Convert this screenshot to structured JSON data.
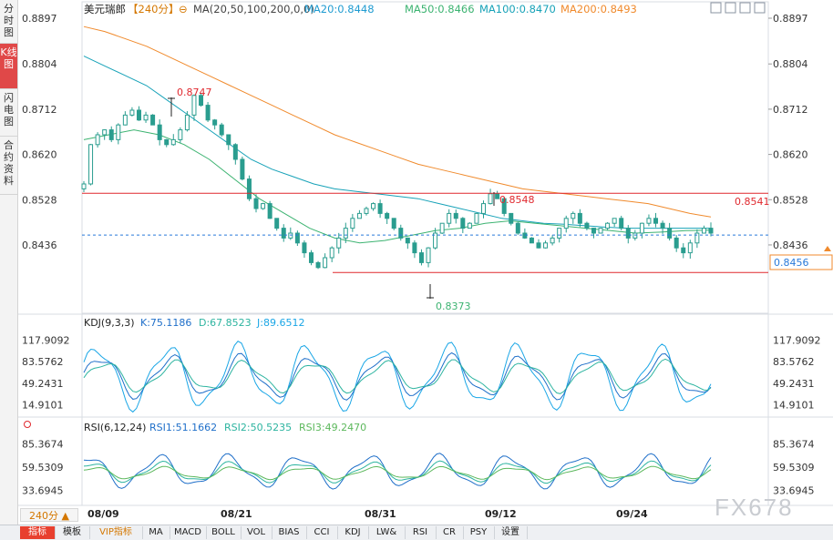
{
  "left_tabs": [
    {
      "label": "分时图",
      "active": false
    },
    {
      "label": "K线图",
      "active": true
    },
    {
      "label": "闪电图",
      "active": false
    },
    {
      "label": "合约资料",
      "active": false
    }
  ],
  "header": {
    "symbol": "美元瑞郎",
    "period": "【240分】",
    "ma_params": "MA(20,50,100,200,0,0)",
    "ma20": "MA20:0.8448",
    "ma50": "MA50:0.8466",
    "ma100": "MA100:0.8470",
    "ma200": "MA200:0.8493"
  },
  "colors": {
    "candle": "#2a9d8f",
    "ma20": "#1f9bd1",
    "ma50": "#3cb371",
    "ma100": "#17a2b8",
    "ma200": "#f08a2c",
    "resistance": "#e0282e",
    "support": "#e0282e",
    "current": "#2979d9",
    "high_label": "#e0282e",
    "low_label": "#3cb371",
    "k": "#1f6fc9",
    "d": "#2db4a0",
    "j": "#1aa6e6",
    "rsi1": "#1f6fc9",
    "rsi2": "#2db4a0",
    "rsi3": "#5cb85c"
  },
  "price_axis": {
    "ticks": [
      "0.8897",
      "0.8804",
      "0.8712",
      "0.8620",
      "0.8528",
      "0.8436"
    ],
    "current_price": "0.8456",
    "min": 0.836,
    "max": 0.8897
  },
  "annotations": {
    "high": "0.8747",
    "mid_high": "0.8548",
    "low": "0.8373",
    "resistance": "0.8541"
  },
  "kdj": {
    "title": "KDJ(9,3,3)",
    "k": "K:75.1186",
    "d": "D:67.8523",
    "j": "J:89.6512",
    "ticks": [
      "117.9092",
      "83.5762",
      "49.2431",
      "14.9101"
    ]
  },
  "rsi": {
    "title": "RSI(6,12,24)",
    "rsi1": "RSI1:51.1662",
    "rsi2": "RSI2:50.5235",
    "rsi3": "RSI3:49.2470",
    "ticks": [
      "85.3674",
      "59.5309",
      "33.6945"
    ]
  },
  "date_axis": [
    "08/09",
    "08/21",
    "08/31",
    "09/12",
    "09/24"
  ],
  "period_selector": "240分 ▲",
  "watermark": "FX678",
  "bottom_tabs": [
    "指标",
    "模板",
    "VIP指标",
    "MA",
    "MACD",
    "BOLL",
    "VOL",
    "BIAS",
    "CCI",
    "KDJ",
    "LW&",
    "RSI",
    "CR",
    "PSY",
    "设置"
  ],
  "chart_data": {
    "type": "candlestick",
    "x_categories": [
      "08/09",
      "08/21",
      "08/31",
      "09/12",
      "09/24"
    ],
    "y_range": [
      0.836,
      0.8897
    ],
    "key_points": [
      {
        "label": "0.8747",
        "kind": "swing-high",
        "near": "08/21"
      },
      {
        "label": "0.8548",
        "kind": "swing-high",
        "near": "09/12"
      },
      {
        "label": "0.8373",
        "kind": "swing-low",
        "near": "08/31"
      }
    ],
    "horizontal_lines": [
      {
        "value": 0.8541,
        "label": "0.8541"
      },
      {
        "value": 0.838,
        "label": ""
      }
    ],
    "close_path": [
      0.856,
      0.864,
      0.866,
      0.867,
      0.865,
      0.868,
      0.87,
      0.871,
      0.869,
      0.87,
      0.868,
      0.865,
      0.864,
      0.865,
      0.867,
      0.87,
      0.874,
      0.872,
      0.869,
      0.868,
      0.866,
      0.864,
      0.861,
      0.857,
      0.853,
      0.851,
      0.852,
      0.849,
      0.847,
      0.845,
      0.846,
      0.844,
      0.842,
      0.84,
      0.839,
      0.841,
      0.843,
      0.845,
      0.847,
      0.849,
      0.85,
      0.851,
      0.852,
      0.85,
      0.849,
      0.847,
      0.845,
      0.844,
      0.842,
      0.84,
      0.843,
      0.846,
      0.848,
      0.85,
      0.849,
      0.847,
      0.848,
      0.85,
      0.852,
      0.854,
      0.853,
      0.85,
      0.848,
      0.846,
      0.845,
      0.844,
      0.843,
      0.844,
      0.845,
      0.847,
      0.849,
      0.85,
      0.848,
      0.847,
      0.846,
      0.847,
      0.848,
      0.849,
      0.847,
      0.845,
      0.846,
      0.848,
      0.849,
      0.848,
      0.847,
      0.845,
      0.843,
      0.842,
      0.844,
      0.846,
      0.847,
      0.846
    ],
    "ma200_path": [
      0.888,
      0.887,
      0.8855,
      0.884,
      0.882,
      0.88,
      0.878,
      0.876,
      0.874,
      0.872,
      0.87,
      0.868,
      0.866,
      0.8645,
      0.863,
      0.8615,
      0.86,
      0.859,
      0.858,
      0.857,
      0.856,
      0.855,
      0.8545,
      0.854,
      0.8535,
      0.853,
      0.8525,
      0.852,
      0.851,
      0.85,
      0.8493
    ],
    "ma100_path": [
      0.882,
      0.88,
      0.878,
      0.876,
      0.873,
      0.87,
      0.867,
      0.864,
      0.861,
      0.859,
      0.8575,
      0.856,
      0.855,
      0.8545,
      0.854,
      0.8535,
      0.853,
      0.852,
      0.851,
      0.85,
      0.849,
      0.8485,
      0.848,
      0.8478,
      0.8475,
      0.8472,
      0.847,
      0.847,
      0.847,
      0.847,
      0.847
    ],
    "ma50_path": [
      0.865,
      0.866,
      0.867,
      0.866,
      0.864,
      0.861,
      0.857,
      0.853,
      0.85,
      0.847,
      0.845,
      0.844,
      0.8445,
      0.8455,
      0.8465,
      0.847,
      0.848,
      0.8485,
      0.848,
      0.8475,
      0.847,
      0.8465,
      0.846,
      0.8462,
      0.8465,
      0.8466
    ],
    "kdj_range": [
      0,
      130
    ],
    "rsi_range": [
      20,
      95
    ]
  }
}
